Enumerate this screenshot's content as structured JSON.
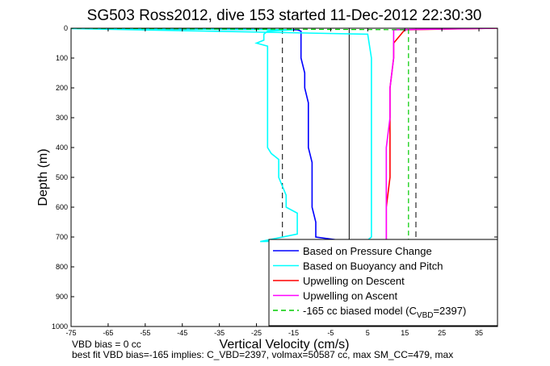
{
  "chart_data": {
    "type": "line",
    "title": "SG503 Ross2012, dive 153 started 11-Dec-2012 22:30:30",
    "xlabel": "Vertical Velocity (cm/s)",
    "ylabel": "Depth (m)",
    "xlim": [
      -75,
      40
    ],
    "ylim": [
      0,
      1000
    ],
    "y_reversed": true,
    "xticks": [
      -75,
      -65,
      -55,
      -45,
      -35,
      -25,
      -15,
      -5,
      5,
      15,
      25,
      35
    ],
    "yticks": [
      0,
      100,
      200,
      300,
      400,
      500,
      600,
      700,
      800,
      900,
      1000
    ],
    "vertical_lines": [
      {
        "x": 0,
        "style": "solid"
      },
      {
        "x": -18,
        "style": "dashed"
      },
      {
        "x": 18,
        "style": "dashed"
      }
    ],
    "legend_position": "bottom-right",
    "series": [
      {
        "name": "Based on Pressure Change",
        "color": "#0000ff",
        "depth": [
          0,
          5,
          10,
          50,
          100,
          150,
          200,
          250,
          300,
          350,
          400,
          450,
          500,
          550,
          600,
          650,
          700,
          715
        ],
        "velocity": [
          -80,
          -14,
          -13,
          -13,
          -13,
          -12,
          -12,
          -11,
          -11,
          -11,
          -11,
          -10,
          -10,
          -10,
          -10,
          -9,
          -9,
          0
        ]
      },
      {
        "name": "Based on Buoyancy and Pitch",
        "color": "#00ffff",
        "depth": [
          0,
          5,
          10,
          20,
          40,
          50,
          60,
          100,
          200,
          400,
          420,
          440,
          500,
          560,
          600,
          620,
          690,
          715,
          710,
          700,
          600,
          400,
          200,
          100,
          20,
          0
        ],
        "velocity": [
          -80,
          -15,
          -22,
          -23,
          -23,
          -25,
          -22,
          -22,
          -22,
          -22,
          -21,
          -19,
          -19,
          -17,
          -17,
          -14,
          -14,
          -24,
          5,
          6,
          6,
          6,
          6,
          6,
          5,
          -80
        ]
      },
      {
        "name": "Upwelling on Descent",
        "color": "#ff0000",
        "depth": [
          0,
          5,
          50,
          100,
          200,
          300,
          400,
          500,
          600,
          700,
          715
        ],
        "velocity": [
          40,
          15,
          12,
          12,
          11,
          11,
          11,
          11,
          10,
          10,
          10
        ]
      },
      {
        "name": "Upwelling on Ascent",
        "color": "#ff00ff",
        "depth": [
          0,
          5,
          50,
          100,
          200,
          300,
          400,
          500,
          600,
          700,
          715
        ],
        "velocity": [
          40,
          12,
          12,
          12,
          11,
          11,
          10,
          10,
          10,
          10,
          10
        ]
      },
      {
        "name": "-165 cc biased model (C_VBD=2397)",
        "legend_label": "-165 cc biased model (C",
        "legend_subscript": "VBD",
        "legend_suffix": "=2397)",
        "color": "#00cc00",
        "style": "dashed",
        "depth": [
          0,
          5,
          100,
          200,
          300,
          400,
          500,
          600,
          700,
          715
        ],
        "velocity": [
          -80,
          16,
          16,
          16,
          16,
          16,
          16,
          16,
          16,
          16
        ]
      }
    ]
  },
  "footer": {
    "line1": "VBD bias = 0 cc",
    "line2": "best fit VBD bias=-165 implies: C_VBD=2397, volmax=50587 cc, max SM_CC=479, max"
  }
}
